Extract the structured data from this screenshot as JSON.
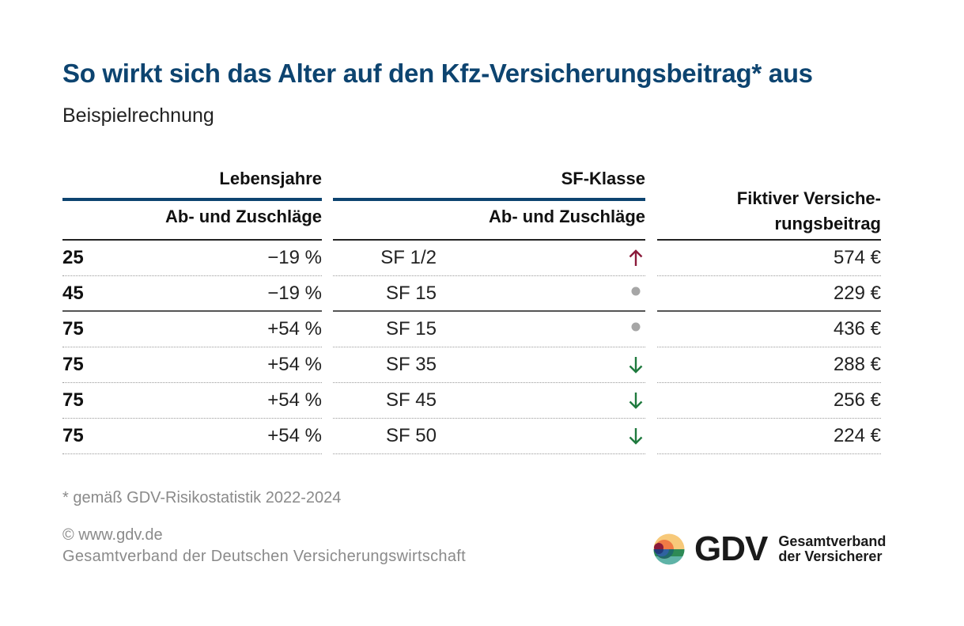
{
  "header": {
    "title": "So wirkt sich das Alter auf den Kfz-Versicherungsbeitrag* aus",
    "subtitle": "Beispielrechnung"
  },
  "table": {
    "columns": {
      "age": {
        "group": "Lebensjahre",
        "sub": "Ab- und Zuschläge"
      },
      "sf": {
        "group": "SF-Klasse",
        "sub": "Ab- und Zuschläge"
      },
      "premium": {
        "line1": "Fiktiver Versiche-",
        "line2": "rungsbeitrag"
      }
    },
    "rows": [
      {
        "age": "25",
        "age_adjustment": "−19 %",
        "sf_class": "SF 1/2",
        "sf_trend": "up",
        "premium": "574 €"
      },
      {
        "age": "45",
        "age_adjustment": "−19 %",
        "sf_class": "SF 15",
        "sf_trend": "neutral",
        "premium": "229 €"
      },
      {
        "age": "75",
        "age_adjustment": "+54 %",
        "sf_class": "SF 15",
        "sf_trend": "neutral",
        "premium": "436 €"
      },
      {
        "age": "75",
        "age_adjustment": "+54 %",
        "sf_class": "SF 35",
        "sf_trend": "down",
        "premium": "288 €"
      },
      {
        "age": "75",
        "age_adjustment": "+54 %",
        "sf_class": "SF 45",
        "sf_trend": "down",
        "premium": "256 €"
      },
      {
        "age": "75",
        "age_adjustment": "+54 %",
        "sf_class": "SF 50",
        "sf_trend": "down",
        "premium": "224 €"
      }
    ],
    "trend_icons": {
      "up": "arrow-up-icon",
      "neutral": "dot-icon",
      "down": "arrow-down-icon"
    },
    "trend_colors": {
      "up": "#8b1a3a",
      "neutral": "#a6a6a6",
      "down": "#1f7a3e"
    }
  },
  "footer": {
    "footnote": "* gemäß GDV-Risikostatistik 2022-2024",
    "copyright": "© www.gdv.de",
    "organization": "Gesamtverband der Deutschen Versicherungswirtschaft"
  },
  "logo": {
    "wordmark": "GDV",
    "line1": "Gesamtverband",
    "line2": "der Versicherer"
  },
  "colors": {
    "title": "#0d4470",
    "rule": "#0d4470",
    "muted_text": "#8a8a8a"
  }
}
